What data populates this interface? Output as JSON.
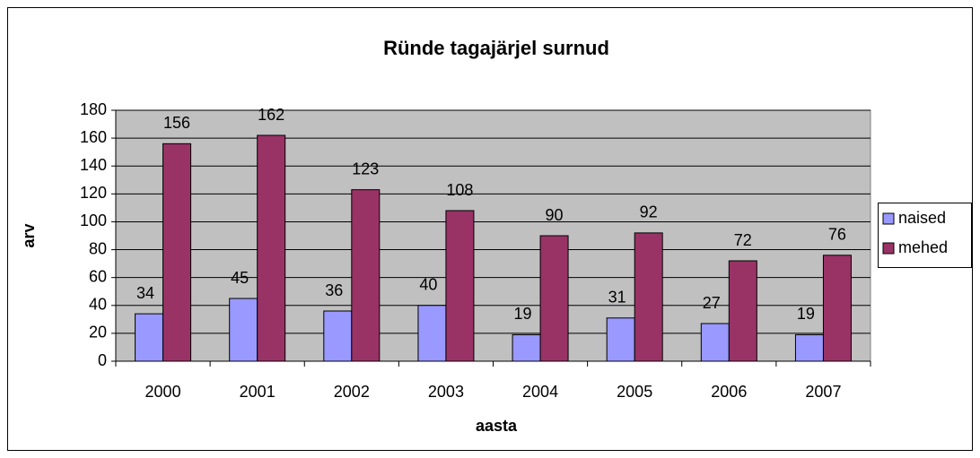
{
  "chart_data": {
    "type": "bar",
    "title": "Ründe tagajärjel surnud",
    "x_label": "aasta",
    "y_label": "arv",
    "categories": [
      "2000",
      "2001",
      "2002",
      "2003",
      "2004",
      "2005",
      "2006",
      "2007"
    ],
    "series": [
      {
        "name": "naised",
        "color": "#9999ff",
        "values": [
          34,
          45,
          36,
          40,
          19,
          31,
          27,
          19
        ]
      },
      {
        "name": "mehed",
        "color": "#993366",
        "values": [
          156,
          162,
          123,
          108,
          90,
          92,
          72,
          76
        ]
      }
    ],
    "ylim": [
      0,
      180
    ],
    "yticks": [
      0,
      20,
      40,
      60,
      80,
      100,
      120,
      140,
      160,
      180
    ],
    "grid": true,
    "legend": "right",
    "plot_background": "#c0c0c0"
  }
}
